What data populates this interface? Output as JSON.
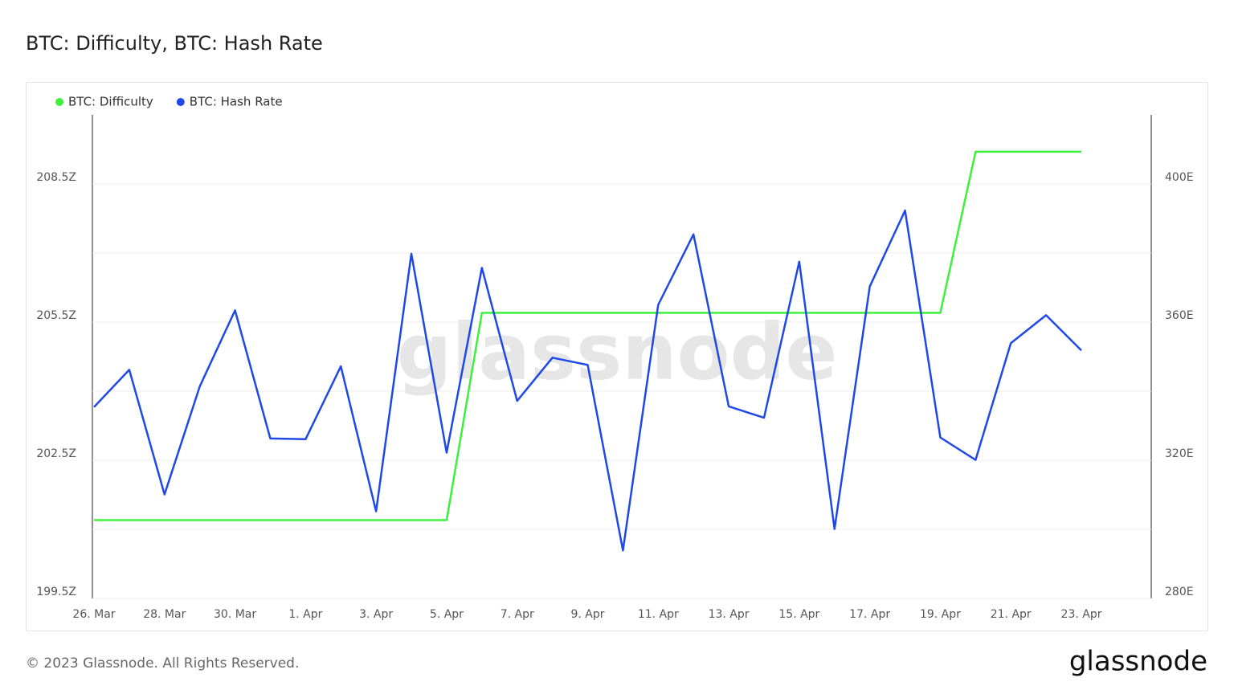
{
  "chart_data": {
    "type": "line",
    "title": "BTC: Difficulty, BTC: Hash Rate",
    "watermark": "glassnode",
    "categories": [
      "26. Mar",
      null,
      "28. Mar",
      null,
      "30. Mar",
      null,
      "1. Apr",
      null,
      "3. Apr",
      null,
      "5. Apr",
      null,
      "7. Apr",
      null,
      "9. Apr",
      null,
      "11. Apr",
      null,
      "13. Apr",
      null,
      "15. Apr",
      null,
      "17. Apr",
      null,
      "19. Apr",
      null,
      "21. Apr",
      null,
      "23. Apr"
    ],
    "series": [
      {
        "name": "BTC: Difficulty",
        "color": "#3cf03c",
        "values": [
          201.2,
          201.2,
          201.2,
          201.2,
          201.2,
          201.2,
          201.2,
          201.2,
          201.2,
          201.2,
          201.2,
          205.7,
          205.7,
          205.7,
          205.7,
          205.7,
          205.7,
          205.7,
          205.7,
          205.7,
          205.7,
          205.7,
          205.7,
          205.7,
          205.7,
          209.2,
          209.2,
          209.2,
          209.2
        ]
      },
      {
        "name": "BTC: Hash Rate",
        "color": "#1f48e8",
        "axis": "y2",
        "values": [
          335.4,
          346.2,
          310.1,
          341.4,
          363.4,
          326.3,
          326.1,
          347.2,
          305.2,
          379.8,
          322.2,
          375.7,
          337.2,
          349.7,
          347.6,
          293.9,
          365.0,
          385.4,
          335.6,
          332.3,
          377.5,
          300.1,
          370.3,
          392.3,
          326.6,
          320.1,
          353.9,
          362.0,
          351.8
        ]
      }
    ],
    "ylim": [
      199.5,
      210
    ],
    "yticks": [
      {
        "value": 199.5,
        "label": "199.5Z"
      },
      {
        "value": 202.5,
        "label": "202.5Z"
      },
      {
        "value": 205.5,
        "label": "205.5Z"
      },
      {
        "value": 208.5,
        "label": "208.5Z"
      }
    ],
    "minor_yticks": [
      201,
      204,
      207
    ],
    "y2lim": [
      280,
      420
    ],
    "y2ticks": [
      {
        "value": 280,
        "label": "280E"
      },
      {
        "value": 320,
        "label": "320E"
      },
      {
        "value": 360,
        "label": "360E"
      },
      {
        "value": 400,
        "label": "400E"
      }
    ],
    "grid": true
  },
  "footer": "© 2023 Glassnode. All Rights Reserved.",
  "logo": "glassnode"
}
